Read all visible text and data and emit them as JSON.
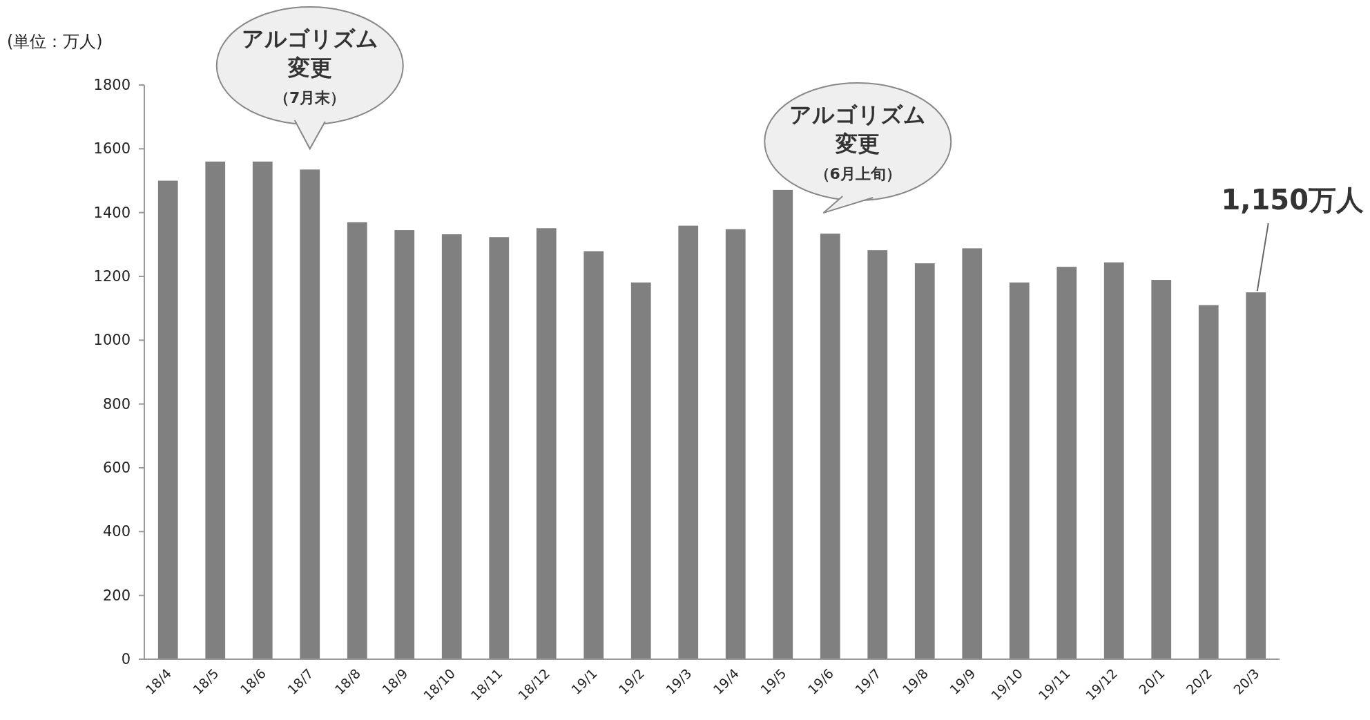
{
  "chart_data": {
    "type": "bar",
    "ylabel": "(単位：万人)",
    "categories": [
      "18/4",
      "18/5",
      "18/6",
      "18/7",
      "18/8",
      "18/9",
      "18/10",
      "18/11",
      "18/12",
      "19/1",
      "19/2",
      "19/3",
      "19/4",
      "19/5",
      "19/6",
      "19/7",
      "19/8",
      "19/9",
      "19/10",
      "19/11",
      "19/12",
      "20/1",
      "20/2",
      "20/3"
    ],
    "values": [
      1500,
      1560,
      1560,
      1535,
      1370,
      1345,
      1332,
      1323,
      1351,
      1279,
      1181,
      1359,
      1348,
      1471,
      1334,
      1282,
      1241,
      1288,
      1181,
      1230,
      1244,
      1189,
      1110,
      1150
    ],
    "color": "#808080",
    "ylim": [
      0,
      1800
    ],
    "yticks": [
      0,
      200,
      400,
      600,
      800,
      1000,
      1200,
      1400,
      1600,
      1800
    ],
    "grid": false,
    "annotations": [
      "アルゴリズム",
      "変更",
      "（7月末）",
      "アルゴリズム",
      "変更",
      "（6月上旬）",
      {
        "text": "1,150万人",
        "x": "20/3",
        "y": 1150
      }
    ]
  }
}
